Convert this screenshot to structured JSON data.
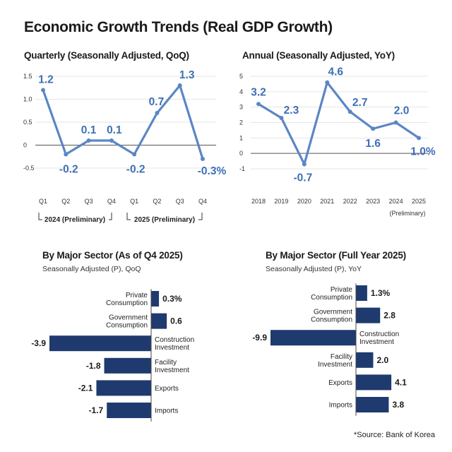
{
  "title": "Economic Growth Trends (Real GDP Growth)",
  "source": "*Source: Bank of Korea",
  "colors": {
    "line": "#5b86c5",
    "label": "#3f6fb5",
    "bar": "#1f3a6e",
    "grid": "#e6e6e6"
  },
  "chart_data": [
    {
      "type": "line",
      "title": "Quarterly (Seasonally Adjusted, QoQ)",
      "categories": [
        "Q1",
        "Q2",
        "Q3",
        "Q4",
        "Q1",
        "Q2",
        "Q3",
        "Q4"
      ],
      "values": [
        1.2,
        -0.2,
        0.1,
        0.1,
        -0.2,
        0.7,
        1.3,
        -0.3
      ],
      "value_labels": [
        "1.2",
        "-0.2",
        "0.1",
        "0.1",
        "-0.2",
        "0.7",
        "1.3",
        "-0.3%"
      ],
      "yticks": [
        "1.5",
        "1.0",
        "0.5",
        "0",
        "-0.5"
      ],
      "ylim": [
        -0.5,
        1.5
      ],
      "groups": [
        "2024 (Preliminary)",
        "2025 (Preliminary)"
      ]
    },
    {
      "type": "line",
      "title": "Annual (Seasonally Adjusted, YoY)",
      "categories": [
        "2018",
        "2019",
        "2020",
        "2021",
        "2022",
        "2023",
        "2024",
        "2025"
      ],
      "values": [
        3.2,
        2.3,
        -0.7,
        4.6,
        2.7,
        1.6,
        2.0,
        1.0
      ],
      "value_labels": [
        "3.2",
        "2.3",
        "-0.7",
        "4.6",
        "2.7",
        "1.6",
        "2.0",
        "1.0%"
      ],
      "yticks": [
        "5",
        "4",
        "3",
        "2",
        "1",
        "0",
        "-1"
      ],
      "ylim": [
        -1,
        5
      ],
      "note": "(Preliminary)"
    },
    {
      "type": "bar",
      "title": "By Major Sector (As of Q4 2025)",
      "subtitle": "Seasonally Adjusted (P), QoQ",
      "categories": [
        [
          "Private",
          "Consumption"
        ],
        [
          "Government",
          "Consumption"
        ],
        [
          "Construction",
          "Investment"
        ],
        [
          "Facility",
          "Investment"
        ],
        [
          "Exports"
        ],
        [
          "Imports"
        ]
      ],
      "values": [
        0.3,
        0.6,
        -3.9,
        -1.8,
        -2.1,
        -1.7
      ],
      "value_labels": [
        "0.3%",
        "0.6",
        "-3.9",
        "-1.8",
        "-2.1",
        "-1.7"
      ]
    },
    {
      "type": "bar",
      "title": "By Major Sector (Full Year 2025)",
      "subtitle": "Seasonally Adjusted (P), YoY",
      "categories": [
        [
          "Private",
          "Consumption"
        ],
        [
          "Government",
          "Consumption"
        ],
        [
          "Construction",
          "Investment"
        ],
        [
          "Facility",
          "Investment"
        ],
        [
          "Exports"
        ],
        [
          "Imports"
        ]
      ],
      "values": [
        1.3,
        2.8,
        -9.9,
        2.0,
        4.1,
        3.8
      ],
      "value_labels": [
        "1.3%",
        "2.8",
        "-9.9",
        "2.0",
        "4.1",
        "3.8"
      ]
    }
  ]
}
